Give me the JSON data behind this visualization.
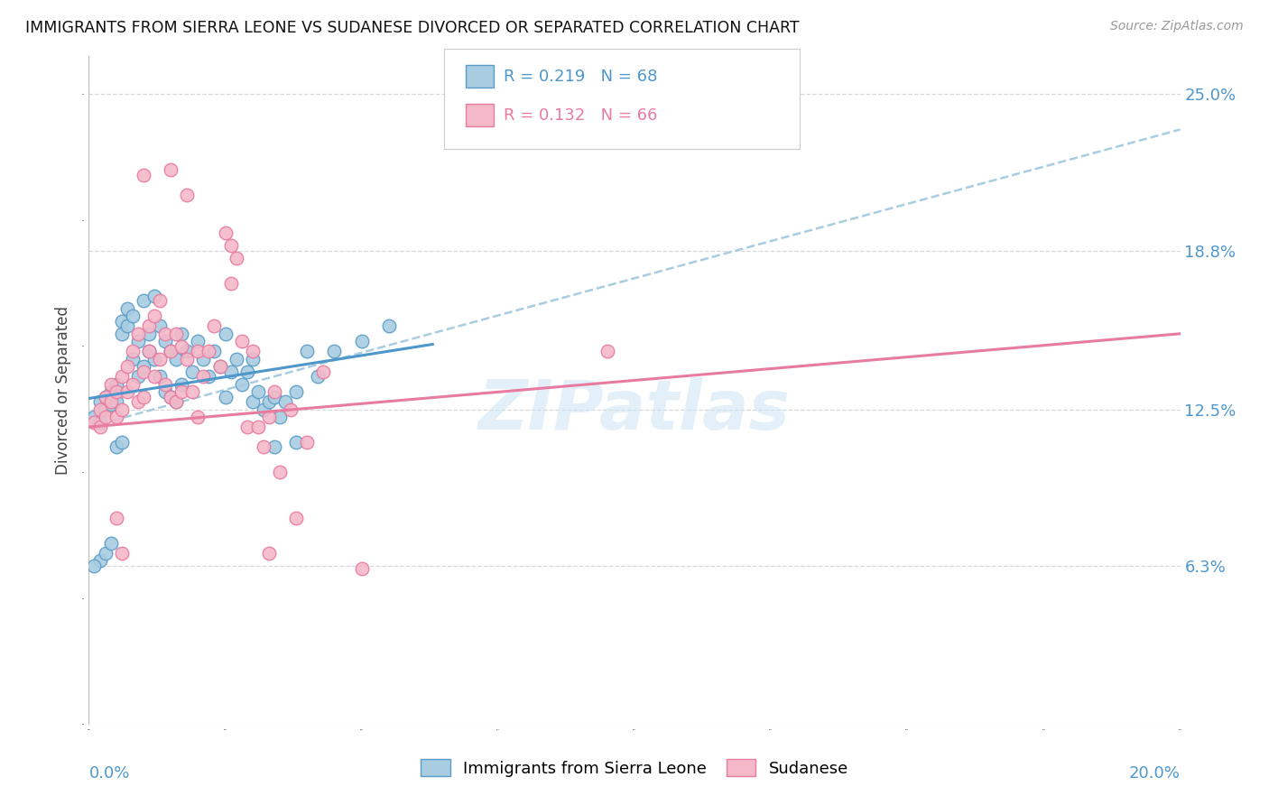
{
  "title": "IMMIGRANTS FROM SIERRA LEONE VS SUDANESE DIVORCED OR SEPARATED CORRELATION CHART",
  "source": "Source: ZipAtlas.com",
  "ylabel": "Divorced or Separated",
  "ylabel_ticks": [
    "6.3%",
    "12.5%",
    "18.8%",
    "25.0%"
  ],
  "ylabel_tick_vals": [
    0.063,
    0.125,
    0.188,
    0.25
  ],
  "xlim": [
    0.0,
    0.2
  ],
  "ylim": [
    0.0,
    0.265
  ],
  "color_blue": "#a8cce0",
  "color_pink": "#f4b8c8",
  "color_blue_edge": "#5b9dc9",
  "color_pink_edge": "#e87ba0",
  "color_blue_line": "#4e97cc",
  "color_pink_line": "#e87ba0",
  "color_dashed": "#a8cce0",
  "watermark": "ZIPatlas",
  "background_color": "#ffffff",
  "grid_color": "#d8d8d8",
  "sierra_leone_points": [
    [
      0.001,
      0.122
    ],
    [
      0.002,
      0.12
    ],
    [
      0.002,
      0.128
    ],
    [
      0.003,
      0.13
    ],
    [
      0.003,
      0.125
    ],
    [
      0.004,
      0.132
    ],
    [
      0.004,
      0.127
    ],
    [
      0.005,
      0.135
    ],
    [
      0.005,
      0.128
    ],
    [
      0.006,
      0.16
    ],
    [
      0.006,
      0.155
    ],
    [
      0.007,
      0.165
    ],
    [
      0.007,
      0.158
    ],
    [
      0.008,
      0.162
    ],
    [
      0.008,
      0.145
    ],
    [
      0.009,
      0.152
    ],
    [
      0.009,
      0.138
    ],
    [
      0.01,
      0.168
    ],
    [
      0.01,
      0.142
    ],
    [
      0.011,
      0.155
    ],
    [
      0.011,
      0.148
    ],
    [
      0.012,
      0.17
    ],
    [
      0.012,
      0.145
    ],
    [
      0.013,
      0.158
    ],
    [
      0.013,
      0.138
    ],
    [
      0.014,
      0.152
    ],
    [
      0.014,
      0.132
    ],
    [
      0.015,
      0.148
    ],
    [
      0.015,
      0.13
    ],
    [
      0.016,
      0.145
    ],
    [
      0.016,
      0.128
    ],
    [
      0.017,
      0.155
    ],
    [
      0.017,
      0.135
    ],
    [
      0.018,
      0.148
    ],
    [
      0.019,
      0.14
    ],
    [
      0.02,
      0.152
    ],
    [
      0.021,
      0.145
    ],
    [
      0.022,
      0.138
    ],
    [
      0.023,
      0.148
    ],
    [
      0.024,
      0.142
    ],
    [
      0.025,
      0.155
    ],
    [
      0.025,
      0.13
    ],
    [
      0.026,
      0.14
    ],
    [
      0.027,
      0.145
    ],
    [
      0.028,
      0.135
    ],
    [
      0.029,
      0.14
    ],
    [
      0.03,
      0.145
    ],
    [
      0.03,
      0.128
    ],
    [
      0.031,
      0.132
    ],
    [
      0.032,
      0.125
    ],
    [
      0.033,
      0.128
    ],
    [
      0.034,
      0.13
    ],
    [
      0.035,
      0.122
    ],
    [
      0.036,
      0.128
    ],
    [
      0.038,
      0.132
    ],
    [
      0.04,
      0.148
    ],
    [
      0.042,
      0.138
    ],
    [
      0.045,
      0.148
    ],
    [
      0.05,
      0.152
    ],
    [
      0.055,
      0.158
    ],
    [
      0.002,
      0.065
    ],
    [
      0.003,
      0.068
    ],
    [
      0.004,
      0.072
    ],
    [
      0.005,
      0.11
    ],
    [
      0.006,
      0.112
    ],
    [
      0.034,
      0.11
    ],
    [
      0.038,
      0.112
    ],
    [
      0.001,
      0.063
    ]
  ],
  "sudanese_points": [
    [
      0.001,
      0.12
    ],
    [
      0.002,
      0.125
    ],
    [
      0.002,
      0.118
    ],
    [
      0.003,
      0.122
    ],
    [
      0.003,
      0.13
    ],
    [
      0.004,
      0.128
    ],
    [
      0.004,
      0.135
    ],
    [
      0.005,
      0.122
    ],
    [
      0.005,
      0.132
    ],
    [
      0.006,
      0.138
    ],
    [
      0.006,
      0.125
    ],
    [
      0.007,
      0.142
    ],
    [
      0.007,
      0.132
    ],
    [
      0.008,
      0.148
    ],
    [
      0.008,
      0.135
    ],
    [
      0.009,
      0.155
    ],
    [
      0.009,
      0.128
    ],
    [
      0.01,
      0.14
    ],
    [
      0.01,
      0.13
    ],
    [
      0.011,
      0.158
    ],
    [
      0.011,
      0.148
    ],
    [
      0.012,
      0.162
    ],
    [
      0.012,
      0.138
    ],
    [
      0.013,
      0.168
    ],
    [
      0.013,
      0.145
    ],
    [
      0.014,
      0.155
    ],
    [
      0.014,
      0.135
    ],
    [
      0.015,
      0.148
    ],
    [
      0.015,
      0.13
    ],
    [
      0.016,
      0.155
    ],
    [
      0.016,
      0.128
    ],
    [
      0.017,
      0.15
    ],
    [
      0.017,
      0.132
    ],
    [
      0.018,
      0.145
    ],
    [
      0.019,
      0.132
    ],
    [
      0.02,
      0.148
    ],
    [
      0.02,
      0.122
    ],
    [
      0.021,
      0.138
    ],
    [
      0.022,
      0.148
    ],
    [
      0.023,
      0.158
    ],
    [
      0.024,
      0.142
    ],
    [
      0.025,
      0.195
    ],
    [
      0.026,
      0.19
    ],
    [
      0.026,
      0.175
    ],
    [
      0.027,
      0.185
    ],
    [
      0.028,
      0.152
    ],
    [
      0.029,
      0.118
    ],
    [
      0.03,
      0.148
    ],
    [
      0.031,
      0.118
    ],
    [
      0.032,
      0.11
    ],
    [
      0.033,
      0.122
    ],
    [
      0.034,
      0.132
    ],
    [
      0.035,
      0.1
    ],
    [
      0.037,
      0.125
    ],
    [
      0.04,
      0.112
    ],
    [
      0.043,
      0.14
    ],
    [
      0.01,
      0.218
    ],
    [
      0.015,
      0.22
    ],
    [
      0.018,
      0.21
    ],
    [
      0.006,
      0.068
    ],
    [
      0.033,
      0.068
    ],
    [
      0.095,
      0.148
    ],
    [
      0.005,
      0.082
    ],
    [
      0.038,
      0.082
    ],
    [
      0.05,
      0.062
    ]
  ]
}
